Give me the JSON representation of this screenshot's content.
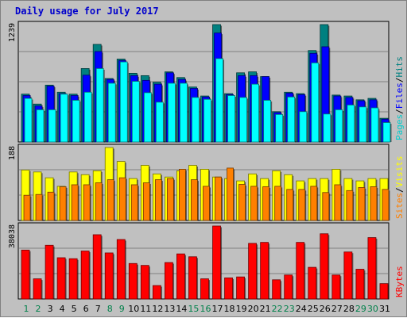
{
  "chart_data": {
    "type": "bar",
    "title": "Daily usage for July 2017",
    "days": [
      "1",
      "2",
      "3",
      "4",
      "5",
      "6",
      "7",
      "8",
      "9",
      "10",
      "11",
      "12",
      "13",
      "14",
      "15",
      "16",
      "17",
      "18",
      "19",
      "20",
      "21",
      "22",
      "23",
      "24",
      "25",
      "26",
      "27",
      "28",
      "29",
      "30",
      "31"
    ],
    "weekend_days": [
      "1",
      "2",
      "8",
      "9",
      "15",
      "16",
      "22",
      "23",
      "29",
      "30"
    ],
    "panels": [
      {
        "id": "pages-files-hits",
        "ymax": 1239,
        "ymax_label": "1239",
        "series": [
          {
            "name": "Hits",
            "color": "#008080",
            "values": [
              505,
              400,
              600,
              525,
              505,
              775,
              1030,
              670,
              875,
              725,
              700,
              630,
              740,
              680,
              580,
              485,
              1239,
              510,
              730,
              740,
              690,
              320,
              525,
              510,
              965,
              1239,
              495,
              485,
              445,
              460,
              250
            ]
          },
          {
            "name": "Files",
            "color": "#0000ff",
            "values": [
              490,
              380,
              590,
              510,
              490,
              705,
              955,
              660,
              860,
              700,
              650,
              610,
              730,
              660,
              565,
              475,
              1150,
              500,
              700,
              700,
              690,
              310,
              515,
              500,
              935,
              1005,
              485,
              470,
              435,
              445,
              240
            ]
          },
          {
            "name": "Pages",
            "color": "#00ffff",
            "values": [
              460,
              340,
              340,
              505,
              440,
              525,
              775,
              620,
              845,
              640,
              520,
              420,
              620,
              620,
              470,
              450,
              880,
              490,
              470,
              610,
              440,
              290,
              475,
              320,
              835,
              295,
              340,
              390,
              370,
              360,
              205
            ]
          }
        ],
        "legend": [
          {
            "text": "Pages",
            "color": "#00cccc"
          },
          {
            "text": "/",
            "color": "#000000"
          },
          {
            "text": "Files",
            "color": "#0000ff"
          },
          {
            "text": "/",
            "color": "#000000"
          },
          {
            "text": "Hits",
            "color": "#008080"
          }
        ]
      },
      {
        "id": "visits-sites",
        "ymax": 188,
        "ymax_label": "188",
        "series": [
          {
            "name": "Visits",
            "color": "#ffff00",
            "values": [
              130,
              125,
              110,
              88,
              125,
              118,
              128,
              188,
              152,
              108,
              142,
              120,
              112,
              128,
              142,
              132,
              112,
              108,
              102,
              120,
              108,
              128,
              118,
              102,
              108,
              108,
              132,
              108,
              102,
              108,
              108
            ]
          },
          {
            "name": "Sites",
            "color": "#ff8000",
            "values": [
              65,
              67,
              73,
              87,
              92,
              92,
              97,
              105,
              110,
              92,
              97,
              105,
              108,
              132,
              105,
              88,
              112,
              135,
              93,
              88,
              87,
              88,
              80,
              80,
              88,
              72,
              92,
              77,
              85,
              87,
              80
            ]
          }
        ],
        "legend": [
          {
            "text": "Sites",
            "color": "#ff8000"
          },
          {
            "text": "/",
            "color": "#000000"
          },
          {
            "text": "Visits",
            "color": "#ffff00"
          }
        ]
      },
      {
        "id": "kbytes",
        "ymax": 38038,
        "ymax_label": "38038",
        "series": [
          {
            "name": "KBytes",
            "color": "#ff0000",
            "values": [
              25500,
              10500,
              28000,
              21500,
              21000,
              25000,
              33500,
              24000,
              31000,
              18500,
              17500,
              7000,
              19000,
              23500,
              22000,
              10500,
              38038,
              11000,
              11500,
              29000,
              29500,
              10000,
              12500,
              29500,
              16500,
              34000,
              12500,
              24500,
              15500,
              32000,
              8000
            ]
          }
        ],
        "legend": [
          {
            "text": "KBytes",
            "color": "#ff0000"
          }
        ]
      }
    ]
  }
}
